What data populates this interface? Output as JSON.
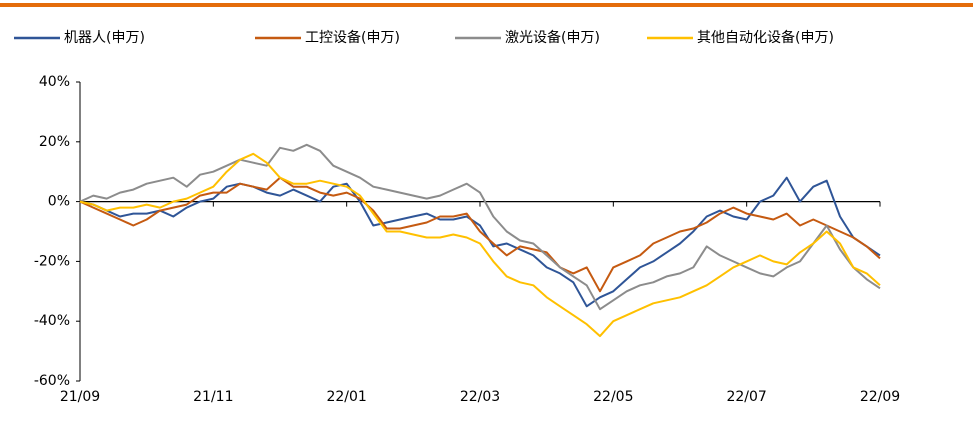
{
  "chart_data": {
    "type": "line",
    "categories": [
      "21/09",
      null,
      null,
      null,
      null,
      null,
      null,
      null,
      null,
      null,
      "21/11",
      null,
      null,
      null,
      null,
      null,
      null,
      null,
      null,
      null,
      "22/01",
      null,
      null,
      null,
      null,
      null,
      null,
      null,
      null,
      null,
      "22/03",
      null,
      null,
      null,
      null,
      null,
      null,
      null,
      null,
      null,
      "22/05",
      null,
      null,
      null,
      null,
      null,
      null,
      null,
      null,
      null,
      "22/07",
      null,
      null,
      null,
      null,
      null,
      null,
      null,
      null,
      null,
      "22/09"
    ],
    "series": [
      {
        "name": "机器人(申万)",
        "color": "#2f5597",
        "values": [
          0,
          -1,
          -3,
          -5,
          -4,
          -4,
          -3,
          -5,
          -2,
          0,
          1,
          5,
          6,
          5,
          3,
          2,
          4,
          2,
          0,
          5,
          6,
          0,
          -8,
          -7,
          -6,
          -5,
          -4,
          -6,
          -6,
          -5,
          -8,
          -15,
          -14,
          -16,
          -18,
          -22,
          -24,
          -27,
          -35,
          -32,
          -30,
          -26,
          -22,
          -20,
          -17,
          -14,
          -10,
          -5,
          -3,
          -5,
          -6,
          0,
          2,
          8,
          0,
          5,
          7,
          -5,
          -12,
          -15,
          -18
        ]
      },
      {
        "name": "工控设备(申万)",
        "color": "#c55a11",
        "values": [
          0,
          -2,
          -4,
          -6,
          -8,
          -6,
          -3,
          -2,
          -1,
          2,
          3,
          3,
          6,
          5,
          4,
          8,
          5,
          5,
          3,
          2,
          3,
          1,
          -3,
          -9,
          -9,
          -8,
          -7,
          -5,
          -5,
          -4,
          -10,
          -14,
          -18,
          -15,
          -16,
          -17,
          -22,
          -24,
          -22,
          -30,
          -22,
          -20,
          -18,
          -14,
          -12,
          -10,
          -9,
          -7,
          -4,
          -2,
          -4,
          -5,
          -6,
          -4,
          -8,
          -6,
          -8,
          -10,
          -12,
          -15,
          -19
        ]
      },
      {
        "name": "激光设备(申万)",
        "color": "#8c8c8c",
        "values": [
          0,
          2,
          1,
          3,
          4,
          6,
          7,
          8,
          5,
          9,
          10,
          12,
          14,
          13,
          12,
          18,
          17,
          19,
          17,
          12,
          10,
          8,
          5,
          4,
          3,
          2,
          1,
          2,
          4,
          6,
          3,
          -5,
          -10,
          -13,
          -14,
          -18,
          -22,
          -25,
          -28,
          -36,
          -33,
          -30,
          -28,
          -27,
          -25,
          -24,
          -22,
          -15,
          -18,
          -20,
          -22,
          -24,
          -25,
          -22,
          -20,
          -14,
          -8,
          -16,
          -22,
          -26,
          -29
        ]
      },
      {
        "name": "其他自动化设备(申万)",
        "color": "#ffc000",
        "values": [
          0,
          -1,
          -3,
          -2,
          -2,
          -1,
          -2,
          0,
          1,
          3,
          5,
          10,
          14,
          16,
          13,
          8,
          6,
          6,
          7,
          6,
          5,
          2,
          -4,
          -10,
          -10,
          -11,
          -12,
          -12,
          -11,
          -12,
          -14,
          -20,
          -25,
          -27,
          -28,
          -32,
          -35,
          -38,
          -41,
          -45,
          -40,
          -38,
          -36,
          -34,
          -33,
          -32,
          -30,
          -28,
          -25,
          -22,
          -20,
          -18,
          -20,
          -21,
          -17,
          -14,
          -10,
          -14,
          -22,
          -24,
          -28
        ]
      }
    ],
    "ylim": [
      -60,
      40
    ],
    "yticks": [
      {
        "value": -60,
        "label": "-60%"
      },
      {
        "value": -40,
        "label": "-40%"
      },
      {
        "value": -20,
        "label": "-20%"
      },
      {
        "value": 0,
        "label": "0%"
      },
      {
        "value": 20,
        "label": "20%"
      },
      {
        "value": 40,
        "label": "40%"
      }
    ]
  }
}
